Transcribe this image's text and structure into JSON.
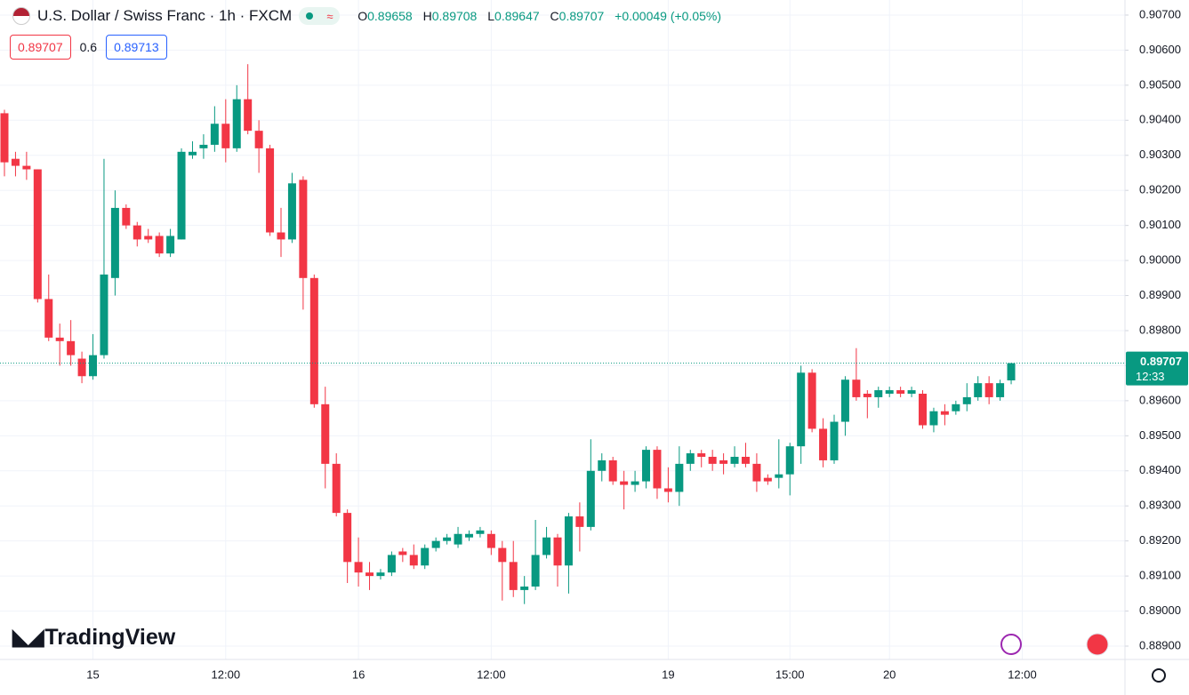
{
  "header": {
    "symbol": "U.S. Dollar / Swiss Franc · 1h · FXCM",
    "readout": [
      {
        "key": "O",
        "value": "0.89658"
      },
      {
        "key": "H",
        "value": "0.89708"
      },
      {
        "key": "L",
        "value": "0.89647"
      },
      {
        "key": "C",
        "value": "0.89707"
      }
    ],
    "change": "+0.00049 (+0.05%)",
    "sell": "0.89707",
    "spread": "0.6",
    "buy": "0.89713",
    "brand": "TradingView"
  },
  "chart_data": {
    "type": "candlestick",
    "title": "U.S. Dollar / Swiss Franc · 1h · FXCM",
    "categories": [
      null,
      null,
      null,
      null,
      null,
      null,
      null,
      null,
      "15",
      null,
      null,
      null,
      null,
      null,
      null,
      null,
      null,
      null,
      null,
      null,
      "12:00",
      null,
      null,
      null,
      null,
      null,
      null,
      null,
      null,
      null,
      null,
      null,
      "16",
      null,
      null,
      null,
      null,
      null,
      null,
      null,
      null,
      null,
      null,
      null,
      "12:00",
      null,
      null,
      null,
      null,
      null,
      null,
      null,
      null,
      null,
      null,
      null,
      null,
      null,
      null,
      null,
      "19",
      null,
      null,
      null,
      null,
      null,
      null,
      null,
      null,
      null,
      null,
      "15:00",
      null,
      null,
      null,
      null,
      null,
      null,
      null,
      null,
      "20",
      null,
      null,
      null,
      null,
      null,
      null,
      null,
      null,
      null,
      null,
      null,
      "12:00"
    ],
    "open": [
      0.9042,
      0.9029,
      0.9027,
      0.9026,
      0.8989,
      0.8978,
      0.8977,
      0.8972,
      0.8967,
      0.8973,
      0.8995,
      0.9015,
      0.901,
      0.9007,
      0.9007,
      0.9002,
      0.9006,
      0.903,
      0.9032,
      0.9033,
      0.9039,
      0.9032,
      0.9046,
      0.9037,
      0.9032,
      0.9008,
      0.9006,
      0.9023,
      0.8995,
      0.8959,
      0.8942,
      0.8928,
      0.8914,
      0.8911,
      0.891,
      0.8911,
      0.8917,
      0.8916,
      0.8913,
      0.8918,
      0.892,
      0.8919,
      0.8921,
      0.8922,
      0.8922,
      0.8918,
      0.8914,
      0.8906,
      0.8907,
      0.8916,
      0.8921,
      0.8913,
      0.8927,
      0.8924,
      0.894,
      0.8943,
      0.8937,
      0.8936,
      0.8937,
      0.8946,
      0.8935,
      0.8934,
      0.8942,
      0.8945,
      0.8944,
      0.8943,
      0.8942,
      0.8944,
      0.8942,
      0.8938,
      0.8938,
      0.8939,
      0.8947,
      0.8968,
      0.8952,
      0.8943,
      0.8954,
      0.8966,
      0.8962,
      0.8961,
      0.8962,
      0.8963,
      0.8962,
      0.8962,
      0.8953,
      0.8957,
      0.8957,
      0.8959,
      0.8961,
      0.8965,
      0.8961,
      0.89658,
      null
    ],
    "high": [
      0.9043,
      0.9031,
      0.9031,
      0.9026,
      0.8996,
      0.8982,
      0.8983,
      0.8974,
      0.8979,
      0.9029,
      0.902,
      0.9016,
      0.9011,
      0.9009,
      0.9008,
      0.9009,
      0.9032,
      0.9034,
      0.9036,
      0.9044,
      0.9046,
      0.905,
      0.9056,
      0.904,
      0.9033,
      0.9015,
      0.9025,
      0.9024,
      0.8996,
      0.8964,
      0.8945,
      0.8929,
      0.8921,
      0.8914,
      0.8912,
      0.8917,
      0.8918,
      0.8919,
      0.8919,
      0.8921,
      0.8922,
      0.8924,
      0.8923,
      0.8924,
      0.8923,
      0.892,
      0.892,
      0.891,
      0.8926,
      0.8924,
      0.8922,
      0.8928,
      0.8931,
      0.8949,
      0.8945,
      0.8944,
      0.894,
      0.894,
      0.8947,
      0.8947,
      0.8941,
      0.8947,
      0.8946,
      0.8946,
      0.8946,
      0.8945,
      0.8947,
      0.8948,
      0.8945,
      0.8939,
      0.8949,
      0.8948,
      0.897,
      0.8969,
      0.8955,
      0.8956,
      0.8967,
      0.8975,
      0.8963,
      0.8964,
      0.8964,
      0.8964,
      0.8964,
      0.8963,
      0.8958,
      0.8959,
      0.896,
      0.8965,
      0.8967,
      0.8967,
      0.8966,
      0.89708,
      null
    ],
    "low": [
      0.9024,
      0.9024,
      0.9023,
      0.8988,
      0.8977,
      0.897,
      0.897,
      0.8965,
      0.8966,
      0.8972,
      0.899,
      0.9009,
      0.9004,
      0.9005,
      0.9001,
      0.9001,
      0.9006,
      0.9029,
      0.9029,
      0.9031,
      0.9028,
      0.9031,
      0.9036,
      0.9025,
      0.9007,
      0.9001,
      0.9005,
      0.8986,
      0.8958,
      0.8935,
      0.8927,
      0.8908,
      0.8907,
      0.8906,
      0.8909,
      0.891,
      0.8914,
      0.8912,
      0.8912,
      0.8917,
      0.8919,
      0.8918,
      0.892,
      0.8921,
      0.8916,
      0.8903,
      0.8904,
      0.8902,
      0.8906,
      0.8915,
      0.8907,
      0.8905,
      0.8917,
      0.8923,
      0.8937,
      0.8936,
      0.8929,
      0.8934,
      0.8935,
      0.8932,
      0.8931,
      0.893,
      0.894,
      0.8941,
      0.894,
      0.8939,
      0.8941,
      0.8941,
      0.8934,
      0.8936,
      0.8935,
      0.8933,
      0.8942,
      0.8951,
      0.8941,
      0.8942,
      0.895,
      0.896,
      0.8955,
      0.8958,
      0.8961,
      0.8961,
      0.8961,
      0.8952,
      0.8951,
      0.8953,
      0.8956,
      0.8957,
      0.896,
      0.8959,
      0.896,
      0.89647,
      null
    ],
    "close": [
      0.9028,
      0.9027,
      0.9026,
      0.8989,
      0.8978,
      0.8977,
      0.8973,
      0.8967,
      0.8973,
      0.8996,
      0.9015,
      0.901,
      0.9006,
      0.9006,
      0.9002,
      0.9007,
      0.9031,
      0.9031,
      0.9033,
      0.9039,
      0.9032,
      0.9046,
      0.9037,
      0.9032,
      0.9008,
      0.9006,
      0.9022,
      0.8995,
      0.8959,
      0.8942,
      0.8928,
      0.8914,
      0.8911,
      0.891,
      0.8911,
      0.8916,
      0.8916,
      0.8913,
      0.8918,
      0.892,
      0.8921,
      0.8922,
      0.8922,
      0.8923,
      0.8918,
      0.8914,
      0.8906,
      0.8907,
      0.8916,
      0.8921,
      0.8913,
      0.8927,
      0.8924,
      0.894,
      0.8943,
      0.8937,
      0.8936,
      0.8937,
      0.8946,
      0.8935,
      0.8934,
      0.8942,
      0.8945,
      0.8944,
      0.8942,
      0.8942,
      0.8944,
      0.8942,
      0.8937,
      0.8937,
      0.8939,
      0.8947,
      0.8968,
      0.8952,
      0.8943,
      0.8954,
      0.8966,
      0.8961,
      0.8961,
      0.8963,
      0.8963,
      0.8962,
      0.8963,
      0.8953,
      0.8957,
      0.8956,
      0.8959,
      0.8961,
      0.8965,
      0.8961,
      0.8965,
      0.89707,
      null
    ],
    "up_color": "#089981",
    "down_color": "#f23645",
    "ylim": [
      0.88862,
      0.90743
    ],
    "yticks": [
      {
        "value": 0.907,
        "label": "0.90700"
      },
      {
        "value": 0.906,
        "label": "0.90600"
      },
      {
        "value": 0.905,
        "label": "0.90500"
      },
      {
        "value": 0.904,
        "label": "0.90400"
      },
      {
        "value": 0.903,
        "label": "0.90300"
      },
      {
        "value": 0.902,
        "label": "0.90200"
      },
      {
        "value": 0.901,
        "label": "0.90100"
      },
      {
        "value": 0.9,
        "label": "0.90000"
      },
      {
        "value": 0.899,
        "label": "0.89900"
      },
      {
        "value": 0.898,
        "label": "0.89800"
      },
      {
        "value": 0.897,
        "label": "0.89700"
      },
      {
        "value": 0.896,
        "label": "0.89600"
      },
      {
        "value": 0.895,
        "label": "0.89500"
      },
      {
        "value": 0.894,
        "label": "0.89400"
      },
      {
        "value": 0.893,
        "label": "0.89300"
      },
      {
        "value": 0.892,
        "label": "0.89200"
      },
      {
        "value": 0.891,
        "label": "0.89100"
      },
      {
        "value": 0.89,
        "label": "0.89000"
      },
      {
        "value": 0.889,
        "label": "0.88900"
      }
    ],
    "grid": true,
    "last_price": 0.89707,
    "countdown": "12:33"
  }
}
